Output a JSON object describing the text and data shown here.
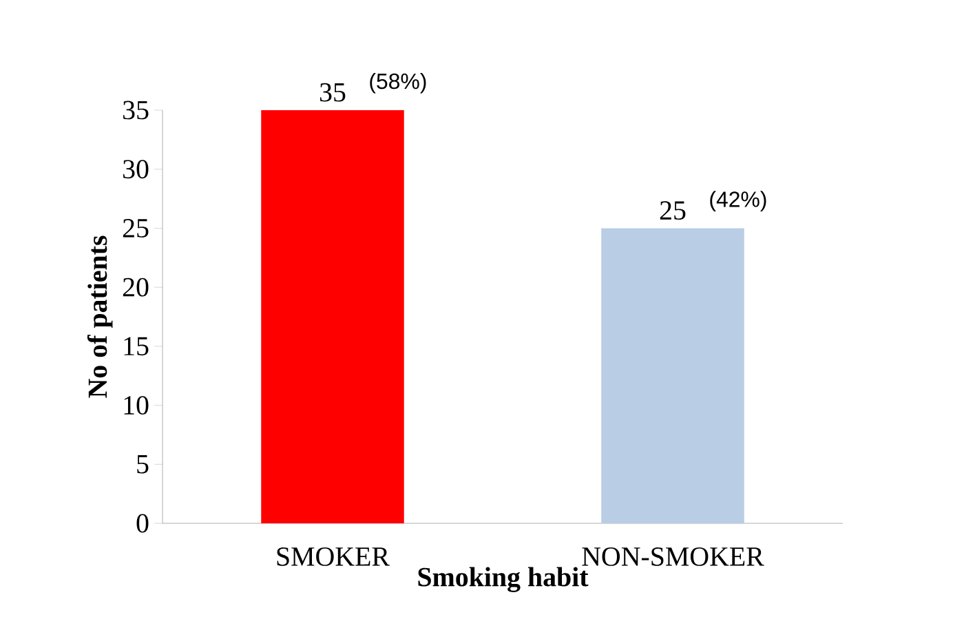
{
  "chart_data": {
    "type": "bar",
    "categories": [
      "SMOKER",
      "NON-SMOKER"
    ],
    "values": [
      35,
      25
    ],
    "colors": [
      "#ff0000",
      "#b9cde5"
    ],
    "value_labels": [
      "35",
      "25"
    ],
    "annotations": [
      {
        "text": "(58%)",
        "x": "SMOKER",
        "y": 35
      },
      {
        "text": "(42%)",
        "x": "NON-SMOKER",
        "y": 25
      }
    ],
    "xlabel": "Smoking habit",
    "ylabel": "No of patients",
    "ylim": [
      0,
      35
    ],
    "yticks": [
      0,
      5,
      10,
      15,
      20,
      25,
      30,
      35
    ]
  }
}
